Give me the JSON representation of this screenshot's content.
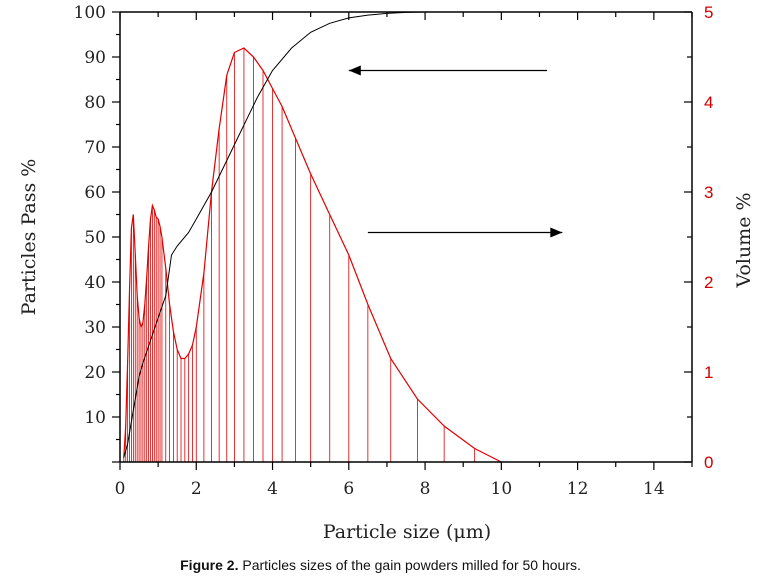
{
  "caption": {
    "label": "Figure 2.",
    "text": "Particles sizes of the gain powders milled for 50 hours."
  },
  "colors": {
    "cumulative": "#000000",
    "volume": "#e00000",
    "axis": "#000000",
    "right_axis": "#d00000"
  },
  "chart_data": {
    "type": "line",
    "xlabel": "Particle size (μm)",
    "ylabel": "Particles Pass %",
    "y2label": "Volume %",
    "xlim": [
      0,
      15
    ],
    "ylim": [
      0,
      100
    ],
    "y2lim": [
      0,
      5
    ],
    "x_ticks": [
      0,
      2,
      4,
      6,
      8,
      10,
      12,
      14
    ],
    "y_ticks": [
      10,
      20,
      30,
      40,
      50,
      60,
      70,
      80,
      90,
      100
    ],
    "y2_ticks": [
      0,
      1,
      2,
      3,
      4,
      5
    ],
    "grid": false,
    "series": [
      {
        "axis": "left",
        "style": "line",
        "x": [
          0.1,
          0.2,
          0.3,
          0.4,
          0.5,
          0.6,
          0.8,
          1.0,
          1.2,
          1.35,
          1.5,
          1.8,
          2.0,
          2.4,
          2.8,
          3.2,
          3.6,
          4.0,
          4.5,
          5.0,
          5.5,
          6.0,
          6.5,
          7.0,
          7.5,
          8.0,
          9.0,
          10.0,
          11.0,
          12.0,
          14.0
        ],
        "y": [
          1,
          4,
          9,
          14,
          19,
          22,
          27,
          32,
          37,
          46,
          48,
          51,
          54,
          60,
          67,
          74,
          81,
          87,
          92,
          95.5,
          97.5,
          98.7,
          99.3,
          99.7,
          99.9,
          100,
          100,
          100,
          100,
          100,
          100
        ]
      },
      {
        "axis": "right",
        "style": "area-with-droplines",
        "x": [
          0.1,
          0.15,
          0.2,
          0.25,
          0.3,
          0.35,
          0.4,
          0.45,
          0.5,
          0.55,
          0.6,
          0.65,
          0.7,
          0.75,
          0.8,
          0.85,
          0.9,
          0.95,
          1.0,
          1.05,
          1.1,
          1.2,
          1.3,
          1.4,
          1.5,
          1.6,
          1.7,
          1.8,
          1.9,
          2.0,
          2.2,
          2.4,
          2.6,
          2.8,
          3.0,
          3.25,
          3.5,
          3.75,
          4.0,
          4.25,
          4.6,
          5.0,
          5.5,
          6.0,
          6.5,
          7.1,
          7.8,
          8.5,
          9.3,
          10.0
        ],
        "y": [
          0.05,
          0.4,
          1.1,
          1.9,
          2.6,
          2.75,
          2.3,
          1.85,
          1.6,
          1.5,
          1.55,
          1.75,
          2.05,
          2.4,
          2.7,
          2.85,
          2.8,
          2.72,
          2.7,
          2.62,
          2.5,
          2.15,
          1.75,
          1.45,
          1.25,
          1.15,
          1.15,
          1.2,
          1.3,
          1.5,
          2.1,
          3.0,
          3.7,
          4.3,
          4.55,
          4.6,
          4.5,
          4.35,
          4.15,
          3.95,
          3.6,
          3.2,
          2.75,
          2.3,
          1.75,
          1.15,
          0.7,
          0.4,
          0.15,
          0.0
        ]
      }
    ],
    "annotations": [
      {
        "type": "arrow",
        "direction": "left",
        "x_from": 11.2,
        "x_to": 6.0,
        "y": 87,
        "axis": "left"
      },
      {
        "type": "arrow",
        "direction": "right",
        "x_from": 6.5,
        "x_to": 11.6,
        "y": 51,
        "axis": "left"
      }
    ]
  }
}
